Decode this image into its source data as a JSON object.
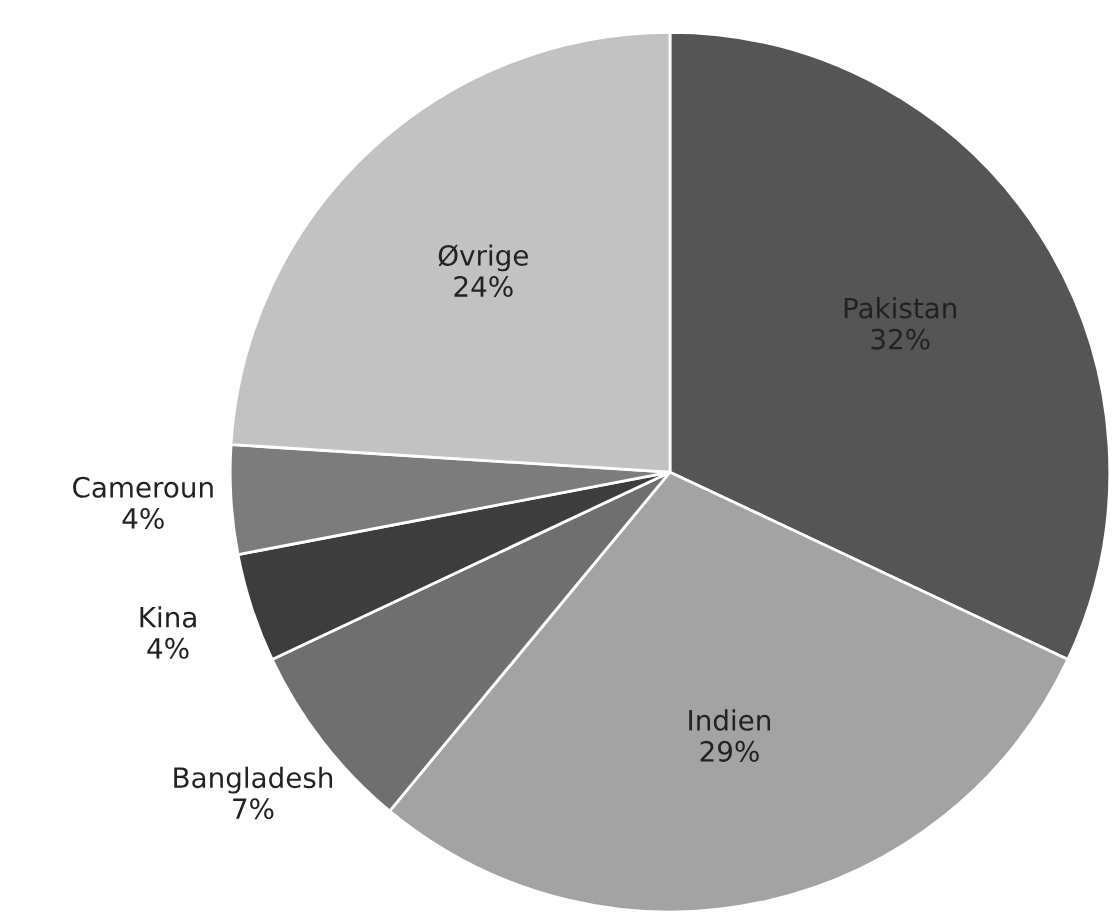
{
  "chart_data": {
    "type": "pie",
    "categories": [
      "Pakistan",
      "Indien",
      "Bangladesh",
      "Kina",
      "Cameroun",
      "Øvrige"
    ],
    "values": [
      32,
      29,
      7,
      4,
      4,
      24
    ],
    "value_labels": [
      "32%",
      "29%",
      "7%",
      "4%",
      "4%",
      "24%"
    ],
    "colors": [
      "#555555",
      "#a3a3a3",
      "#6f6f6f",
      "#3d3d3d",
      "#7c7c7c",
      "#c2c2c2"
    ],
    "legend": false
  }
}
